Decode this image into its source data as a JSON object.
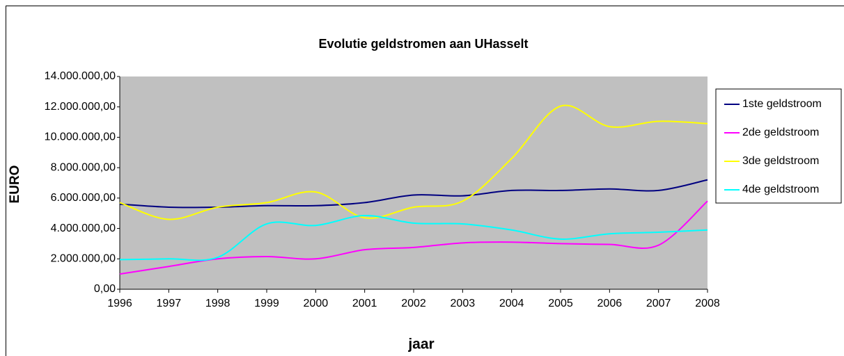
{
  "chart_data": {
    "type": "line",
    "title": "Evolutie geldstromen aan UHasselt",
    "x_label": "jaar",
    "y_label": "EURO",
    "categories": [
      "1996",
      "1997",
      "1998",
      "1999",
      "2000",
      "2001",
      "2002",
      "2003",
      "2004",
      "2005",
      "2006",
      "2007",
      "2008"
    ],
    "series": [
      {
        "name": "1ste geldstroom",
        "color": "#000080",
        "values": [
          5600000,
          5400000,
          5400000,
          5500000,
          5500000,
          5700000,
          6200000,
          6150000,
          6500000,
          6500000,
          6600000,
          6500000,
          7200000
        ]
      },
      {
        "name": "2de geldstroom",
        "color": "#ff00ff",
        "values": [
          1000000,
          1500000,
          2000000,
          2150000,
          2000000,
          2600000,
          2750000,
          3050000,
          3100000,
          3000000,
          2950000,
          2900000,
          5800000
        ]
      },
      {
        "name": "3de geldstroom",
        "color": "#ffff00",
        "values": [
          5700000,
          4600000,
          5400000,
          5700000,
          6400000,
          4700000,
          5400000,
          5800000,
          8600000,
          12050000,
          10700000,
          11050000,
          10900000
        ]
      },
      {
        "name": "4de geldstroom",
        "color": "#00ffff",
        "values": [
          1950000,
          2000000,
          2100000,
          4300000,
          4200000,
          4850000,
          4350000,
          4300000,
          3900000,
          3300000,
          3650000,
          3750000,
          3900000
        ]
      }
    ],
    "ylim": [
      0,
      14000000
    ],
    "yticks": [
      {
        "value": 0,
        "label": "0,00"
      },
      {
        "value": 2000000,
        "label": "2.000.000,00"
      },
      {
        "value": 4000000,
        "label": "4.000.000,00"
      },
      {
        "value": 6000000,
        "label": "6.000.000,00"
      },
      {
        "value": 8000000,
        "label": "8.000.000,00"
      },
      {
        "value": 10000000,
        "label": "10.000.000,00"
      },
      {
        "value": 12000000,
        "label": "12.000.000,00"
      },
      {
        "value": 14000000,
        "label": "14.000.000,00"
      }
    ],
    "legend": "right",
    "plot_background": "#c0c0c0"
  }
}
